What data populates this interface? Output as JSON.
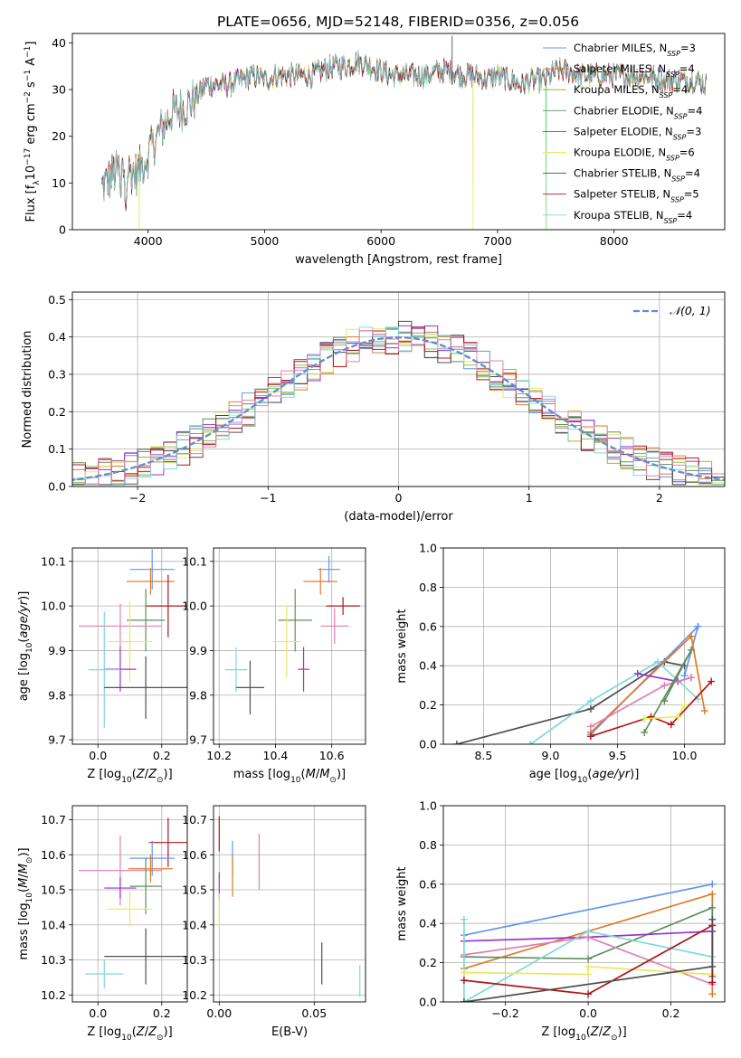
{
  "title": "PLATE=0656, MJD=52148, FIBERID=0356, z=0.056",
  "colors": {
    "Chabrier MILES": "#6495ed",
    "Salpeter MILES": "#e07b28",
    "Kroupa MILES": "#a0a020",
    "Chabrier ELODIE": "#5f8f5f",
    "Salpeter ELODIE": "#9932cc",
    "Kroupa ELODIE": "#e8e860",
    "Chabrier STELIB": "#505050",
    "Salpeter STELIB": "#b01818",
    "Kroupa STELIB": "#80d8d8",
    "pink": "#e080b0",
    "green": "#90c040",
    "normal_curve": "#5b8fd0"
  },
  "chart_data": [
    {
      "id": "spectrum",
      "type": "line",
      "xlabel": "wavelength [Angstrom, rest frame]",
      "ylabel": "Flux [f_λ 10^-17 erg cm^-2 s^-1 A^-1]",
      "xlim": [
        3350,
        8950
      ],
      "ylim": [
        0,
        42
      ],
      "xticks": [
        4000,
        5000,
        6000,
        7000,
        8000
      ],
      "yticks": [
        0,
        10,
        20,
        30,
        40
      ],
      "legend_position": "top-right",
      "legend": [
        {
          "label": "Chabrier MILES",
          "nssp": "3",
          "color_key": "Chabrier MILES"
        },
        {
          "label": "Salpeter MILES",
          "nssp": "4",
          "color_key": "Salpeter MILES"
        },
        {
          "label": "Kroupa MILES",
          "nssp": "4",
          "color_key": "Kroupa MILES"
        },
        {
          "label": "Chabrier ELODIE",
          "nssp": "4",
          "color_key": "Chabrier ELODIE"
        },
        {
          "label": "Salpeter ELODIE",
          "nssp": "3",
          "color_key": "Salpeter ELODIE"
        },
        {
          "label": "Kroupa ELODIE",
          "nssp": "6",
          "color_key": "Kroupa ELODIE"
        },
        {
          "label": "Chabrier STELIB",
          "nssp": "4",
          "color_key": "Chabrier STELIB"
        },
        {
          "label": "Salpeter STELIB",
          "nssp": "5",
          "color_key": "Salpeter STELIB"
        },
        {
          "label": "Kroupa STELIB",
          "nssp": "4",
          "color_key": "Kroupa STELIB"
        }
      ],
      "continuum": [
        [
          3600,
          9
        ],
        [
          3700,
          12
        ],
        [
          3800,
          13
        ],
        [
          3900,
          12
        ],
        [
          4000,
          16
        ],
        [
          4100,
          21
        ],
        [
          4200,
          25
        ],
        [
          4300,
          26
        ],
        [
          4400,
          28
        ],
        [
          4500,
          31
        ],
        [
          4600,
          31
        ],
        [
          4700,
          31
        ],
        [
          4800,
          32
        ],
        [
          4900,
          33
        ],
        [
          5000,
          32
        ],
        [
          5100,
          33
        ],
        [
          5200,
          33
        ],
        [
          5300,
          33
        ],
        [
          5400,
          33
        ],
        [
          5500,
          34
        ],
        [
          5600,
          35
        ],
        [
          5700,
          35
        ],
        [
          5800,
          36
        ],
        [
          5900,
          35
        ],
        [
          6000,
          34
        ],
        [
          6100,
          33
        ],
        [
          6200,
          33
        ],
        [
          6300,
          33
        ],
        [
          6400,
          33
        ],
        [
          6500,
          34
        ],
        [
          6600,
          34
        ],
        [
          6700,
          33
        ],
        [
          6800,
          33
        ],
        [
          6900,
          32
        ],
        [
          7000,
          33
        ],
        [
          7100,
          32
        ],
        [
          7200,
          31
        ],
        [
          7300,
          32
        ],
        [
          7400,
          32
        ],
        [
          7500,
          34
        ],
        [
          7600,
          34
        ],
        [
          7700,
          33
        ],
        [
          7800,
          33
        ],
        [
          7900,
          33
        ],
        [
          8000,
          33
        ],
        [
          8100,
          33
        ],
        [
          8200,
          33
        ],
        [
          8300,
          33
        ],
        [
          8400,
          32
        ],
        [
          8500,
          32
        ],
        [
          8600,
          32
        ],
        [
          8700,
          32
        ],
        [
          8800,
          31
        ]
      ]
    },
    {
      "id": "residuals",
      "type": "histogram",
      "xlabel": "(data-model)/error",
      "ylabel": "Normed distribution",
      "xlim": [
        -2.5,
        2.5
      ],
      "ylim": [
        0,
        0.52
      ],
      "xticks": [
        -2,
        -1,
        0,
        1,
        2
      ],
      "yticks": [
        0.0,
        0.1,
        0.2,
        0.3,
        0.4,
        0.5
      ],
      "legend_position": "top-right",
      "curve_label": "N(0,1)",
      "bin_width": 0.1
    },
    {
      "id": "age_vs_Z",
      "type": "errorbar",
      "xlabel": "Z [log10(Z/Z⊙)]",
      "ylabel": "age [log10(age/yr)]",
      "xlim": [
        -0.08,
        0.28
      ],
      "ylim": [
        9.69,
        10.13
      ],
      "xticks": [
        0.0,
        0.2
      ],
      "yticks": [
        9.7,
        9.8,
        9.9,
        10.0,
        10.1
      ],
      "points": [
        {
          "color_key": "Chabrier MILES",
          "x": 0.17,
          "xerr": 0.07,
          "y": 10.082,
          "yerr": 0.045
        },
        {
          "color_key": "Salpeter MILES",
          "x": 0.165,
          "xerr": 0.075,
          "y": 10.055,
          "yerr": 0.03
        },
        {
          "color_key": "Salpeter STELIB",
          "x": 0.22,
          "xerr": 0.07,
          "y": 10.0,
          "yerr": 0.07
        },
        {
          "color_key": "Chabrier ELODIE",
          "x": 0.15,
          "xerr": 0.06,
          "y": 9.968,
          "yerr": 0.07
        },
        {
          "color_key": "pink",
          "x": 0.07,
          "xerr": 0.13,
          "y": 9.955,
          "yerr": 0.05
        },
        {
          "color_key": "Kroupa ELODIE",
          "x": 0.1,
          "xerr": 0.07,
          "y": 9.92,
          "yerr": 0.09
        },
        {
          "color_key": "Salpeter ELODIE",
          "x": 0.07,
          "xerr": 0.05,
          "y": 9.858,
          "yerr": 0.05
        },
        {
          "color_key": "Kroupa STELIB",
          "x": 0.02,
          "xerr": 0.05,
          "y": 9.857,
          "yerr": 0.13
        },
        {
          "color_key": "Chabrier STELIB",
          "x": 0.15,
          "xerr": 0.13,
          "y": 9.817,
          "yerr": 0.07
        }
      ]
    },
    {
      "id": "age_vs_mass",
      "type": "errorbar",
      "xlabel": "mass [log10(M/M⊙)]",
      "xlim": [
        10.18,
        10.72
      ],
      "ylim": [
        9.69,
        10.13
      ],
      "xticks": [
        10.2,
        10.4,
        10.6
      ],
      "yticks": [
        9.7,
        9.8,
        9.9,
        10.0,
        10.1
      ],
      "points": [
        {
          "color_key": "Chabrier MILES",
          "x": 10.59,
          "xerr": 0.04,
          "y": 10.082,
          "yerr": 0.03
        },
        {
          "color_key": "Salpeter MILES",
          "x": 10.56,
          "xerr": 0.06,
          "y": 10.055,
          "yerr": 0.03
        },
        {
          "color_key": "Salpeter STELIB",
          "x": 10.64,
          "xerr": 0.06,
          "y": 10.0,
          "yerr": 0.02
        },
        {
          "color_key": "Chabrier ELODIE",
          "x": 10.47,
          "xerr": 0.06,
          "y": 9.968,
          "yerr": 0.07
        },
        {
          "color_key": "pink",
          "x": 10.61,
          "xerr": 0.05,
          "y": 9.955,
          "yerr": 0.04
        },
        {
          "color_key": "Kroupa ELODIE",
          "x": 10.44,
          "xerr": 0.05,
          "y": 9.92,
          "yerr": 0.08
        },
        {
          "color_key": "Salpeter ELODIE",
          "x": 10.5,
          "xerr": 0.02,
          "y": 9.858,
          "yerr": 0.05
        },
        {
          "color_key": "Kroupa STELIB",
          "x": 10.26,
          "xerr": 0.04,
          "y": 9.857,
          "yerr": 0.05
        },
        {
          "color_key": "Chabrier STELIB",
          "x": 10.31,
          "xerr": 0.05,
          "y": 9.817,
          "yerr": 0.06
        }
      ]
    },
    {
      "id": "weight_vs_age",
      "type": "line",
      "xlabel": "age [log10(age/yr)]",
      "ylabel": "mass weight",
      "xlim": [
        8.2,
        10.3
      ],
      "ylim": [
        0,
        1.0
      ],
      "xticks": [
        8.5,
        9.0,
        9.5,
        10.0
      ],
      "yticks": [
        0.0,
        0.2,
        0.4,
        0.6,
        0.8,
        1.0
      ],
      "series": [
        {
          "color_key": "Chabrier STELIB",
          "x": [
            8.3,
            9.3,
            9.85,
            10.0
          ],
          "y": [
            0.0,
            0.18,
            0.42,
            0.4
          ]
        },
        {
          "color_key": "Kroupa STELIB",
          "x": [
            8.85,
            9.3,
            9.8,
            10.1
          ],
          "y": [
            0.0,
            0.22,
            0.42,
            0.23
          ]
        },
        {
          "color_key": "Chabrier MILES",
          "x": [
            9.3,
            10.1,
            10.0
          ],
          "y": [
            0.05,
            0.6,
            0.35
          ]
        },
        {
          "color_key": "Salpeter MILES",
          "x": [
            9.3,
            10.05,
            10.15
          ],
          "y": [
            0.06,
            0.55,
            0.17
          ]
        },
        {
          "color_key": "Salpeter ELODIE",
          "x": [
            9.65,
            9.95,
            10.05
          ],
          "y": [
            0.36,
            0.32,
            0.34
          ]
        },
        {
          "color_key": "pink",
          "x": [
            9.3,
            9.85,
            10.05
          ],
          "y": [
            0.09,
            0.3,
            0.34
          ]
        },
        {
          "color_key": "Chabrier ELODIE",
          "x": [
            9.7,
            10.05,
            9.85
          ],
          "y": [
            0.06,
            0.48,
            0.22
          ]
        },
        {
          "color_key": "Salpeter STELIB",
          "x": [
            9.3,
            9.75,
            9.9,
            10.2
          ],
          "y": [
            0.04,
            0.14,
            0.1,
            0.32
          ]
        },
        {
          "color_key": "Kroupa ELODIE",
          "x": [
            9.7,
            9.95,
            10.0
          ],
          "y": [
            0.13,
            0.14,
            0.2
          ]
        }
      ]
    },
    {
      "id": "mass_vs_Z",
      "type": "errorbar",
      "xlabel": "Z [log10(Z/Z⊙)]",
      "ylabel": "mass [log10(M/M⊙)]",
      "xlim": [
        -0.08,
        0.28
      ],
      "ylim": [
        10.18,
        10.74
      ],
      "xticks": [
        0.0,
        0.2
      ],
      "yticks": [
        10.2,
        10.3,
        10.4,
        10.5,
        10.6,
        10.7
      ],
      "points": [
        {
          "color_key": "Salpeter STELIB",
          "x": 0.22,
          "xerr": 0.06,
          "y": 10.635,
          "yerr": 0.07
        },
        {
          "color_key": "pink",
          "x": 0.07,
          "xerr": 0.13,
          "y": 10.555,
          "yerr": 0.1
        },
        {
          "color_key": "Chabrier MILES",
          "x": 0.17,
          "xerr": 0.07,
          "y": 10.59,
          "yerr": 0.05
        },
        {
          "color_key": "Salpeter MILES",
          "x": 0.165,
          "xerr": 0.07,
          "y": 10.56,
          "yerr": 0.04
        },
        {
          "color_key": "Chabrier ELODIE",
          "x": 0.15,
          "xerr": 0.05,
          "y": 10.51,
          "yerr": 0.08
        },
        {
          "color_key": "Salpeter ELODIE",
          "x": 0.07,
          "xerr": 0.05,
          "y": 10.505,
          "yerr": 0.03
        },
        {
          "color_key": "Kroupa ELODIE",
          "x": 0.1,
          "xerr": 0.07,
          "y": 10.445,
          "yerr": 0.05
        },
        {
          "color_key": "Chabrier STELIB",
          "x": 0.15,
          "xerr": 0.13,
          "y": 10.31,
          "yerr": 0.08
        },
        {
          "color_key": "Kroupa STELIB",
          "x": 0.02,
          "xerr": 0.06,
          "y": 10.26,
          "yerr": 0.04
        }
      ]
    },
    {
      "id": "mass_vs_EBV",
      "type": "errorbar",
      "xlabel": "E(B-V)",
      "xlim": [
        -0.003,
        0.077
      ],
      "ylim": [
        10.18,
        10.74
      ],
      "xticks": [
        0.0,
        0.05
      ],
      "yticks": [
        10.2,
        10.3,
        10.4,
        10.5,
        10.6,
        10.7
      ],
      "points": [
        {
          "color_key": "Salpeter STELIB",
          "x": 0.0,
          "xerr": 0,
          "y": 10.66,
          "yerr": 0.05
        },
        {
          "color_key": "pink",
          "x": 0.021,
          "xerr": 0,
          "y": 10.58,
          "yerr": 0.08
        },
        {
          "color_key": "Chabrier MILES",
          "x": 0.007,
          "xerr": 0,
          "y": 10.59,
          "yerr": 0.05
        },
        {
          "color_key": "Salpeter MILES",
          "x": 0.007,
          "xerr": 0,
          "y": 10.54,
          "yerr": 0.06
        },
        {
          "color_key": "Salpeter ELODIE",
          "x": 0.0,
          "xerr": 0,
          "y": 10.51,
          "yerr": 0.04
        },
        {
          "color_key": "Kroupa ELODIE",
          "x": 0.0,
          "xerr": 0,
          "y": 10.44,
          "yerr": 0.05
        },
        {
          "color_key": "Chabrier STELIB",
          "x": 0.054,
          "xerr": 0,
          "y": 10.29,
          "yerr": 0.06
        },
        {
          "color_key": "Kroupa STELIB",
          "x": 0.074,
          "xerr": 0,
          "y": 10.24,
          "yerr": 0.045
        }
      ]
    },
    {
      "id": "weight_vs_Z",
      "type": "line",
      "xlabel": "Z [log10(Z/Z⊙)]",
      "ylabel": "mass weight",
      "xlim": [
        -0.35,
        0.33
      ],
      "ylim": [
        0,
        1.0
      ],
      "xticks": [
        -0.2,
        0.0,
        0.2
      ],
      "yticks": [
        0.0,
        0.2,
        0.4,
        0.6,
        0.8,
        1.0
      ],
      "series": [
        {
          "color_key": "Chabrier MILES",
          "x": [
            -0.3,
            0.3
          ],
          "y": [
            0.34,
            0.6
          ]
        },
        {
          "color_key": "Salpeter MILES",
          "x": [
            -0.3,
            0.3,
            0.3
          ],
          "y": [
            0.17,
            0.55,
            0.04
          ]
        },
        {
          "color_key": "Chabrier ELODIE",
          "x": [
            -0.3,
            0.0,
            0.3,
            0.3
          ],
          "y": [
            0.23,
            0.22,
            0.48,
            0.13
          ]
        },
        {
          "color_key": "Salpeter ELODIE",
          "x": [
            -0.3,
            0.0,
            0.3
          ],
          "y": [
            0.31,
            0.33,
            0.36
          ]
        },
        {
          "color_key": "pink",
          "x": [
            -0.3,
            0.0,
            0.3
          ],
          "y": [
            0.24,
            0.33,
            0.09
          ]
        },
        {
          "color_key": "Kroupa STELIB",
          "x": [
            -0.3,
            -0.3,
            0.0,
            0.3
          ],
          "y": [
            0.42,
            0.0,
            0.36,
            0.23
          ]
        },
        {
          "color_key": "Kroupa ELODIE",
          "x": [
            -0.3,
            0.0,
            0.0,
            0.3
          ],
          "y": [
            0.15,
            0.14,
            0.18,
            0.14
          ]
        },
        {
          "color_key": "Salpeter STELIB",
          "x": [
            -0.3,
            0.0,
            0.3,
            0.3
          ],
          "y": [
            0.11,
            0.04,
            0.39,
            0.1
          ]
        },
        {
          "color_key": "Chabrier STELIB",
          "x": [
            -0.3,
            0.3,
            0.3
          ],
          "y": [
            0.0,
            0.18,
            0.42
          ]
        }
      ]
    }
  ]
}
